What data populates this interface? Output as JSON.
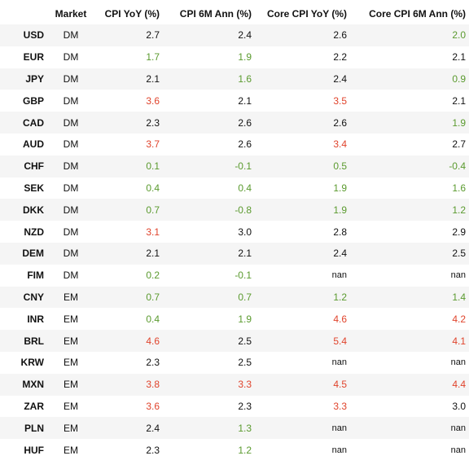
{
  "headers": [
    "",
    "Market",
    "CPI YoY (%)",
    "CPI 6M Ann (%)",
    "Core CPI YoY (%)",
    "Core CPI 6M Ann (%)"
  ],
  "colors": {
    "good": "#5a9a2e",
    "bad": "#e0432b",
    "neutral": "#111111"
  },
  "rows": [
    {
      "ccy": "USD",
      "market": "DM",
      "cpi_yoy": "2.7",
      "cpi_yoy_c": "neutral",
      "cpi_6m": "2.4",
      "cpi_6m_c": "neutral",
      "core_yoy": "2.6",
      "core_yoy_c": "neutral",
      "core_6m": "2.0",
      "core_6m_c": "good"
    },
    {
      "ccy": "EUR",
      "market": "DM",
      "cpi_yoy": "1.7",
      "cpi_yoy_c": "good",
      "cpi_6m": "1.9",
      "cpi_6m_c": "good",
      "core_yoy": "2.2",
      "core_yoy_c": "neutral",
      "core_6m": "2.1",
      "core_6m_c": "neutral"
    },
    {
      "ccy": "JPY",
      "market": "DM",
      "cpi_yoy": "2.1",
      "cpi_yoy_c": "neutral",
      "cpi_6m": "1.6",
      "cpi_6m_c": "good",
      "core_yoy": "2.4",
      "core_yoy_c": "neutral",
      "core_6m": "0.9",
      "core_6m_c": "good"
    },
    {
      "ccy": "GBP",
      "market": "DM",
      "cpi_yoy": "3.6",
      "cpi_yoy_c": "bad",
      "cpi_6m": "2.1",
      "cpi_6m_c": "neutral",
      "core_yoy": "3.5",
      "core_yoy_c": "bad",
      "core_6m": "2.1",
      "core_6m_c": "neutral"
    },
    {
      "ccy": "CAD",
      "market": "DM",
      "cpi_yoy": "2.3",
      "cpi_yoy_c": "neutral",
      "cpi_6m": "2.6",
      "cpi_6m_c": "neutral",
      "core_yoy": "2.6",
      "core_yoy_c": "neutral",
      "core_6m": "1.9",
      "core_6m_c": "good"
    },
    {
      "ccy": "AUD",
      "market": "DM",
      "cpi_yoy": "3.7",
      "cpi_yoy_c": "bad",
      "cpi_6m": "2.6",
      "cpi_6m_c": "neutral",
      "core_yoy": "3.4",
      "core_yoy_c": "bad",
      "core_6m": "2.7",
      "core_6m_c": "neutral"
    },
    {
      "ccy": "CHF",
      "market": "DM",
      "cpi_yoy": "0.1",
      "cpi_yoy_c": "good",
      "cpi_6m": "-0.1",
      "cpi_6m_c": "good",
      "core_yoy": "0.5",
      "core_yoy_c": "good",
      "core_6m": "-0.4",
      "core_6m_c": "good"
    },
    {
      "ccy": "SEK",
      "market": "DM",
      "cpi_yoy": "0.4",
      "cpi_yoy_c": "good",
      "cpi_6m": "0.4",
      "cpi_6m_c": "good",
      "core_yoy": "1.9",
      "core_yoy_c": "good",
      "core_6m": "1.6",
      "core_6m_c": "good"
    },
    {
      "ccy": "DKK",
      "market": "DM",
      "cpi_yoy": "0.7",
      "cpi_yoy_c": "good",
      "cpi_6m": "-0.8",
      "cpi_6m_c": "good",
      "core_yoy": "1.9",
      "core_yoy_c": "good",
      "core_6m": "1.2",
      "core_6m_c": "good"
    },
    {
      "ccy": "NZD",
      "market": "DM",
      "cpi_yoy": "3.1",
      "cpi_yoy_c": "bad",
      "cpi_6m": "3.0",
      "cpi_6m_c": "neutral",
      "core_yoy": "2.8",
      "core_yoy_c": "neutral",
      "core_6m": "2.9",
      "core_6m_c": "neutral"
    },
    {
      "ccy": "DEM",
      "market": "DM",
      "cpi_yoy": "2.1",
      "cpi_yoy_c": "neutral",
      "cpi_6m": "2.1",
      "cpi_6m_c": "neutral",
      "core_yoy": "2.4",
      "core_yoy_c": "neutral",
      "core_6m": "2.5",
      "core_6m_c": "neutral"
    },
    {
      "ccy": "FIM",
      "market": "DM",
      "cpi_yoy": "0.2",
      "cpi_yoy_c": "good",
      "cpi_6m": "-0.1",
      "cpi_6m_c": "good",
      "core_yoy": "nan",
      "core_yoy_c": "neutral",
      "core_6m": "nan",
      "core_6m_c": "neutral"
    },
    {
      "ccy": "CNY",
      "market": "EM",
      "cpi_yoy": "0.7",
      "cpi_yoy_c": "good",
      "cpi_6m": "0.7",
      "cpi_6m_c": "good",
      "core_yoy": "1.2",
      "core_yoy_c": "good",
      "core_6m": "1.4",
      "core_6m_c": "good"
    },
    {
      "ccy": "INR",
      "market": "EM",
      "cpi_yoy": "0.4",
      "cpi_yoy_c": "good",
      "cpi_6m": "1.9",
      "cpi_6m_c": "good",
      "core_yoy": "4.6",
      "core_yoy_c": "bad",
      "core_6m": "4.2",
      "core_6m_c": "bad"
    },
    {
      "ccy": "BRL",
      "market": "EM",
      "cpi_yoy": "4.6",
      "cpi_yoy_c": "bad",
      "cpi_6m": "2.5",
      "cpi_6m_c": "neutral",
      "core_yoy": "5.4",
      "core_yoy_c": "bad",
      "core_6m": "4.1",
      "core_6m_c": "bad"
    },
    {
      "ccy": "KRW",
      "market": "EM",
      "cpi_yoy": "2.3",
      "cpi_yoy_c": "neutral",
      "cpi_6m": "2.5",
      "cpi_6m_c": "neutral",
      "core_yoy": "nan",
      "core_yoy_c": "neutral",
      "core_6m": "nan",
      "core_6m_c": "neutral"
    },
    {
      "ccy": "MXN",
      "market": "EM",
      "cpi_yoy": "3.8",
      "cpi_yoy_c": "bad",
      "cpi_6m": "3.3",
      "cpi_6m_c": "bad",
      "core_yoy": "4.5",
      "core_yoy_c": "bad",
      "core_6m": "4.4",
      "core_6m_c": "bad"
    },
    {
      "ccy": "ZAR",
      "market": "EM",
      "cpi_yoy": "3.6",
      "cpi_yoy_c": "bad",
      "cpi_6m": "2.3",
      "cpi_6m_c": "neutral",
      "core_yoy": "3.3",
      "core_yoy_c": "bad",
      "core_6m": "3.0",
      "core_6m_c": "neutral"
    },
    {
      "ccy": "PLN",
      "market": "EM",
      "cpi_yoy": "2.4",
      "cpi_yoy_c": "neutral",
      "cpi_6m": "1.3",
      "cpi_6m_c": "good",
      "core_yoy": "nan",
      "core_yoy_c": "neutral",
      "core_6m": "nan",
      "core_6m_c": "neutral"
    },
    {
      "ccy": "HUF",
      "market": "EM",
      "cpi_yoy": "2.3",
      "cpi_yoy_c": "neutral",
      "cpi_6m": "1.2",
      "cpi_6m_c": "good",
      "core_yoy": "nan",
      "core_yoy_c": "neutral",
      "core_6m": "nan",
      "core_6m_c": "neutral"
    }
  ]
}
